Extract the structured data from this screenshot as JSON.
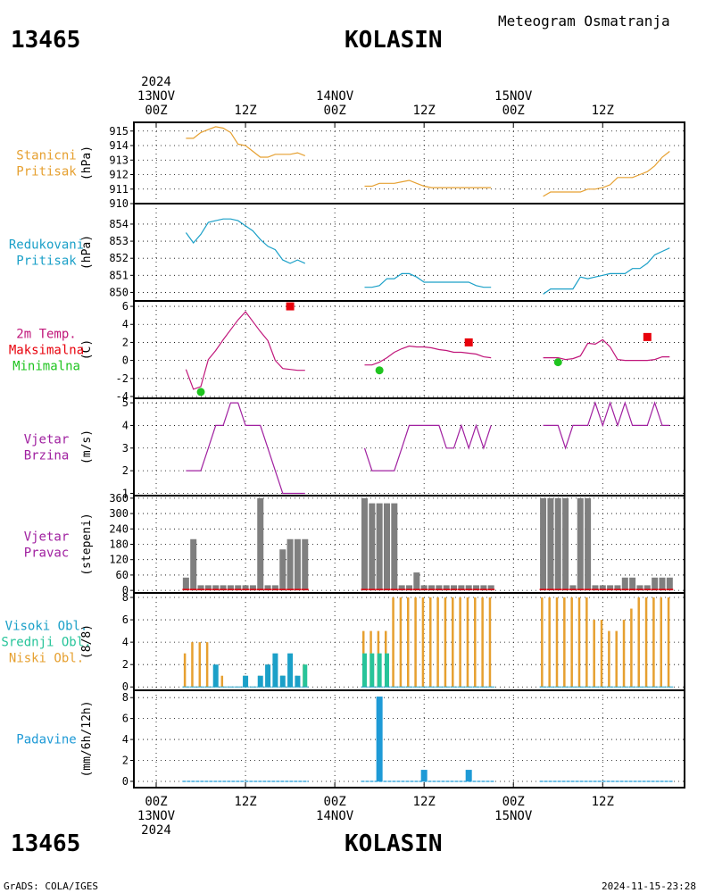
{
  "header": {
    "station_id": "13465",
    "station_name": "KOLASIN",
    "product": "Meteogram Osmatranja"
  },
  "footer": {
    "credit": "GrADS: COLA/IGES",
    "timestamp": "2024-11-15-23:28"
  },
  "time_axis": {
    "top": [
      {
        "hour": 0,
        "lines": [
          "2024",
          "13NOV",
          "00Z"
        ]
      },
      {
        "hour": 12,
        "lines": [
          "12Z"
        ]
      },
      {
        "hour": 24,
        "lines": [
          "14NOV",
          "00Z"
        ]
      },
      {
        "hour": 36,
        "lines": [
          "12Z"
        ]
      },
      {
        "hour": 48,
        "lines": [
          "15NOV",
          "00Z"
        ]
      },
      {
        "hour": 60,
        "lines": [
          "12Z"
        ]
      }
    ],
    "bottom": [
      {
        "hour": 0,
        "lines": [
          "00Z",
          "13NOV",
          "2024"
        ]
      },
      {
        "hour": 12,
        "lines": [
          "12Z"
        ]
      },
      {
        "hour": 24,
        "lines": [
          "00Z",
          "14NOV"
        ]
      },
      {
        "hour": 36,
        "lines": [
          "12Z"
        ]
      },
      {
        "hour": 48,
        "lines": [
          "00Z",
          "15NOV"
        ]
      },
      {
        "hour": 60,
        "lines": [
          "12Z"
        ]
      }
    ],
    "range_hours": [
      -3,
      71
    ]
  },
  "colors": {
    "stanicni": "#e6a030",
    "redukovani": "#1ba0c8",
    "temp": "#c0167a",
    "max": "#e8000b",
    "min": "#1fc41f",
    "vjetar": "#a020a0",
    "pravac": "#7f7f7f",
    "visoki": "#1ba0c8",
    "srednji": "#27c49a",
    "niski": "#e6a030",
    "padavine": "#1e9ad6"
  },
  "chart_data": [
    {
      "id": "stanicni",
      "type": "line",
      "labels": [
        "Stanicni",
        "Pritisak"
      ],
      "ylabel": "(hPa)",
      "ylim": [
        910,
        915.6
      ],
      "ticks": [
        910,
        911,
        912,
        913,
        914,
        915
      ],
      "segments": [
        {
          "x": [
            4,
            5,
            6,
            7,
            8,
            9,
            10,
            11,
            12,
            13,
            14,
            15,
            16,
            17,
            18,
            19,
            20
          ],
          "y": [
            914.5,
            914.5,
            914.9,
            915.1,
            915.3,
            915.2,
            914.9,
            914.1,
            914.0,
            913.6,
            913.2,
            913.2,
            913.4,
            913.4,
            913.4,
            913.5,
            913.3
          ]
        },
        {
          "x": [
            28,
            29,
            30,
            31,
            32,
            33,
            34,
            35,
            36,
            37,
            38,
            39,
            40,
            41,
            42,
            43,
            44,
            45
          ],
          "y": [
            911.2,
            911.2,
            911.4,
            911.4,
            911.4,
            911.5,
            911.6,
            911.4,
            911.2,
            911.1,
            911.1,
            911.1,
            911.1,
            911.1,
            911.1,
            911.1,
            911.1,
            911.1
          ]
        },
        {
          "x": [
            52,
            53,
            54,
            55,
            56,
            57,
            58,
            59,
            60,
            61,
            62,
            63,
            64,
            65,
            66,
            67,
            68,
            69
          ],
          "y": [
            910.5,
            910.8,
            910.8,
            910.8,
            910.8,
            910.8,
            911.0,
            911.0,
            911.1,
            911.3,
            911.8,
            911.8,
            911.8,
            912.0,
            912.2,
            912.6,
            913.2,
            913.6
          ]
        }
      ]
    },
    {
      "id": "redukovani",
      "type": "line",
      "labels": [
        "Redukovani",
        "Pritisak"
      ],
      "ylabel": "(hPa)",
      "ylim": [
        849.5,
        855.2
      ],
      "ticks": [
        850,
        851,
        852,
        853,
        854
      ],
      "segments": [
        {
          "x": [
            4,
            5,
            6,
            7,
            8,
            9,
            10,
            11,
            12,
            13,
            14,
            15,
            16,
            17,
            18,
            19,
            20
          ],
          "y": [
            853.5,
            852.9,
            853.4,
            854.1,
            854.2,
            854.3,
            854.3,
            854.2,
            853.9,
            853.6,
            853.1,
            852.7,
            852.5,
            851.9,
            851.7,
            851.9,
            851.7
          ]
        },
        {
          "x": [
            28,
            29,
            30,
            31,
            32,
            33,
            34,
            35,
            36,
            37,
            38,
            39,
            40,
            41,
            42,
            43,
            44,
            45
          ],
          "y": [
            850.3,
            850.3,
            850.4,
            850.8,
            850.8,
            851.1,
            851.1,
            850.9,
            850.6,
            850.6,
            850.6,
            850.6,
            850.6,
            850.6,
            850.6,
            850.4,
            850.3,
            850.3
          ]
        },
        {
          "x": [
            52,
            53,
            54,
            55,
            56,
            57,
            58,
            59,
            60,
            61,
            62,
            63,
            64,
            65,
            66,
            67,
            68,
            69
          ],
          "y": [
            849.9,
            850.2,
            850.2,
            850.2,
            850.2,
            850.9,
            850.8,
            850.9,
            851.0,
            851.1,
            851.1,
            851.1,
            851.4,
            851.4,
            851.7,
            852.2,
            852.4,
            852.6
          ]
        }
      ]
    },
    {
      "id": "temp",
      "type": "line",
      "labels": [
        "2m Temp.",
        "Maksimalna",
        "Minimalna"
      ],
      "ylabel": "(C)",
      "ylim": [
        -4.2,
        6.6
      ],
      "ticks": [
        -4,
        -2,
        0,
        2,
        4,
        6
      ],
      "segments": [
        {
          "x": [
            4,
            5,
            6,
            7,
            8,
            9,
            10,
            11,
            12,
            13,
            14,
            15,
            16,
            17,
            18,
            19,
            20
          ],
          "y": [
            -1.0,
            -3.2,
            -2.9,
            0.1,
            1.1,
            2.3,
            3.4,
            4.5,
            5.4,
            4.3,
            3.2,
            2.2,
            0.0,
            -0.9,
            -1.0,
            -1.1,
            -1.1
          ]
        },
        {
          "x": [
            28,
            29,
            30,
            31,
            32,
            33,
            34,
            35,
            36,
            37,
            38,
            39,
            40,
            41,
            42,
            43,
            44,
            45
          ],
          "y": [
            -0.5,
            -0.5,
            -0.2,
            0.3,
            0.9,
            1.3,
            1.6,
            1.5,
            1.5,
            1.4,
            1.2,
            1.1,
            0.9,
            0.9,
            0.8,
            0.7,
            0.4,
            0.3
          ]
        },
        {
          "x": [
            52,
            53,
            54,
            55,
            56,
            57,
            58,
            59,
            60,
            61,
            62,
            63,
            64,
            65,
            66,
            67,
            68,
            69
          ],
          "y": [
            0.3,
            0.3,
            0.3,
            0.1,
            0.2,
            0.5,
            1.9,
            1.8,
            2.3,
            1.5,
            0.1,
            0.0,
            0.0,
            0.0,
            0.0,
            0.1,
            0.4,
            0.4
          ]
        }
      ],
      "max_markers": {
        "x": [
          18,
          42,
          66
        ],
        "y": [
          6.0,
          2.0,
          2.6
        ]
      },
      "min_markers": {
        "x": [
          6,
          30,
          54
        ],
        "y": [
          -3.5,
          -1.1,
          -0.2
        ]
      }
    },
    {
      "id": "vjetar",
      "type": "line",
      "labels": [
        "Vjetar",
        "Brzina"
      ],
      "ylabel": "(m/s)",
      "ylim": [
        0.9,
        5.2
      ],
      "ticks": [
        1,
        2,
        3,
        4,
        5
      ],
      "segments": [
        {
          "x": [
            4,
            5,
            6,
            7,
            8,
            9,
            10,
            11,
            12,
            13,
            14,
            15,
            16,
            17,
            18,
            19,
            20
          ],
          "y": [
            2,
            2,
            2,
            3,
            4,
            4,
            5,
            5,
            4,
            4,
            4,
            3,
            2,
            1,
            1,
            1,
            1
          ]
        },
        {
          "x": [
            28,
            29,
            30,
            31,
            32,
            33,
            34,
            35,
            36,
            37,
            38,
            39,
            40,
            41,
            42,
            43,
            44,
            45
          ],
          "y": [
            3,
            2,
            2,
            2,
            2,
            3,
            4,
            4,
            4,
            4,
            4,
            3,
            3,
            4,
            3,
            4,
            3,
            4
          ]
        },
        {
          "x": [
            52,
            53,
            54,
            55,
            56,
            57,
            58,
            59,
            60,
            61,
            62,
            63,
            64,
            65,
            66,
            67,
            68,
            69
          ],
          "y": [
            4,
            4,
            4,
            3,
            4,
            4,
            4,
            5,
            4,
            5,
            4,
            5,
            4,
            4,
            4,
            5,
            4,
            4
          ]
        }
      ]
    },
    {
      "id": "pravac",
      "type": "bar",
      "labels": [
        "Vjetar",
        "Pravac"
      ],
      "ylabel": "(stepeni)",
      "ylim": [
        -10,
        370
      ],
      "ticks": [
        0,
        60,
        120,
        180,
        240,
        300,
        360
      ],
      "x": [
        4,
        5,
        6,
        7,
        8,
        9,
        10,
        11,
        12,
        13,
        14,
        15,
        16,
        17,
        18,
        19,
        20,
        28,
        29,
        30,
        31,
        32,
        33,
        34,
        35,
        36,
        37,
        38,
        39,
        40,
        41,
        42,
        43,
        44,
        45,
        52,
        53,
        54,
        55,
        56,
        57,
        58,
        59,
        60,
        61,
        62,
        63,
        64,
        65,
        66,
        67,
        68,
        69
      ],
      "values": [
        50,
        200,
        20,
        20,
        20,
        20,
        20,
        20,
        20,
        20,
        360,
        20,
        20,
        160,
        200,
        200,
        200,
        360,
        340,
        340,
        340,
        340,
        20,
        20,
        70,
        20,
        20,
        20,
        20,
        20,
        20,
        20,
        20,
        20,
        20,
        360,
        360,
        360,
        360,
        20,
        360,
        360,
        20,
        20,
        20,
        20,
        50,
        50,
        20,
        20,
        50,
        50,
        50
      ],
      "baseline": [
        0,
        20
      ]
    },
    {
      "id": "oblaci",
      "type": "bar",
      "labels": [
        "Visoki Obl.",
        "Srednji Obl.",
        "Niski Obl."
      ],
      "ylabel": "(8/8)",
      "ylim": [
        -0.3,
        8.4
      ],
      "ticks": [
        0,
        2,
        4,
        6,
        8
      ],
      "x": [
        4,
        5,
        6,
        7,
        8,
        9,
        10,
        11,
        12,
        13,
        14,
        15,
        16,
        17,
        18,
        19,
        20,
        28,
        29,
        30,
        31,
        32,
        33,
        34,
        35,
        36,
        37,
        38,
        39,
        40,
        41,
        42,
        43,
        44,
        45,
        52,
        53,
        54,
        55,
        56,
        57,
        58,
        59,
        60,
        61,
        62,
        63,
        64,
        65,
        66,
        67,
        68,
        69
      ],
      "niski": [
        3,
        4,
        4,
        4,
        1,
        1,
        0,
        0,
        1,
        0,
        1,
        2,
        1,
        1,
        2,
        1,
        2,
        5,
        5,
        5,
        5,
        8,
        8,
        8,
        8,
        8,
        8,
        8,
        8,
        8,
        8,
        8,
        8,
        8,
        8,
        8,
        8,
        8,
        8,
        8,
        8,
        8,
        6,
        6,
        5,
        5,
        6,
        7,
        8,
        8,
        8,
        8,
        8
      ],
      "srednji": [
        0,
        0,
        0,
        0,
        0,
        0,
        0,
        0,
        0,
        0,
        0,
        0,
        0,
        1,
        0,
        0,
        2,
        3,
        3,
        3,
        3,
        0,
        0,
        0,
        0,
        0,
        0,
        0,
        0,
        0,
        0,
        0,
        0,
        0,
        0,
        0,
        0,
        0,
        0,
        0,
        0,
        0,
        0,
        0,
        0,
        0,
        0,
        0,
        0,
        0,
        0,
        0,
        0
      ],
      "visoki": [
        0,
        0,
        0,
        0,
        2,
        0,
        0,
        0,
        1,
        0,
        1,
        2,
        3,
        1,
        3,
        1,
        0,
        0,
        0,
        0,
        0,
        0,
        0,
        0,
        0,
        0,
        0,
        0,
        0,
        0,
        0,
        0,
        0,
        0,
        0,
        0,
        0,
        0,
        0,
        0,
        0,
        0,
        0,
        0,
        0,
        0,
        0,
        0,
        0,
        0,
        0,
        0,
        0
      ]
    },
    {
      "id": "padavine",
      "type": "bar",
      "labels": [
        "Padavine"
      ],
      "ylabel": "(mm/6h/12h)",
      "ylim": [
        -0.6,
        8.7
      ],
      "ticks": [
        0,
        2,
        4,
        6,
        8
      ],
      "x": [
        30,
        36,
        42
      ],
      "values": [
        8.1,
        1.1,
        1.1
      ],
      "baseline_segments": [
        [
          4,
          20
        ],
        [
          28,
          45
        ],
        [
          52,
          69
        ]
      ]
    }
  ]
}
